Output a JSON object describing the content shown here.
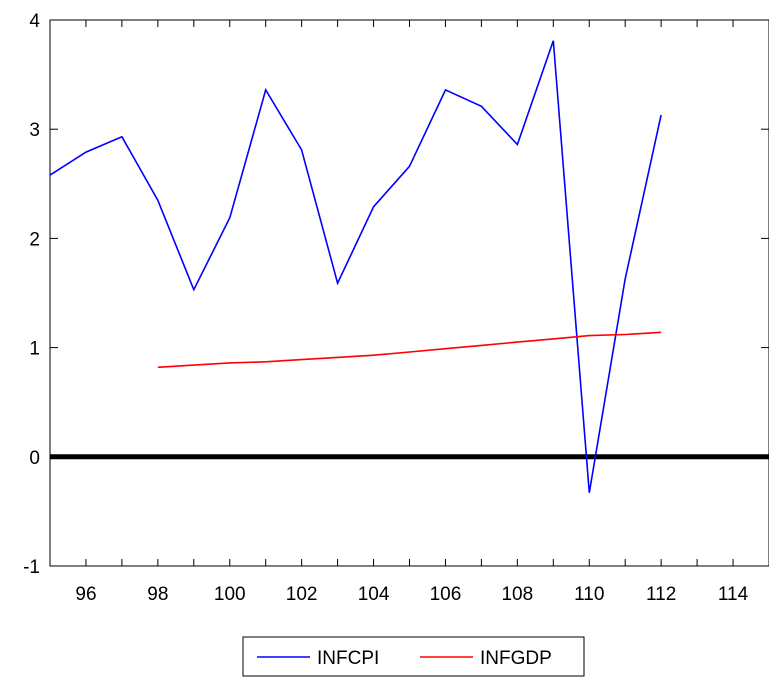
{
  "chart_data": {
    "type": "line",
    "title": "",
    "xlabel": "",
    "ylabel": "",
    "xlim": [
      95,
      115
    ],
    "ylim": [
      -1,
      4
    ],
    "x_ticks": [
      96,
      98,
      100,
      102,
      104,
      106,
      108,
      110,
      112,
      114
    ],
    "y_ticks": [
      -1,
      0,
      1,
      2,
      3,
      4
    ],
    "grid": false,
    "zero_line": true,
    "legend_position": "bottom-center",
    "series": [
      {
        "name": "INFCPI",
        "color": "#0000ff",
        "x": [
          95,
          96,
          97,
          98,
          99,
          100,
          101,
          102,
          103,
          104,
          105,
          106,
          107,
          108,
          109,
          110,
          111,
          112
        ],
        "values": [
          2.58,
          2.79,
          2.93,
          2.35,
          1.53,
          2.19,
          3.36,
          2.81,
          1.59,
          2.29,
          2.66,
          3.36,
          3.21,
          2.86,
          3.81,
          -0.33,
          1.63,
          3.13
        ]
      },
      {
        "name": "INFGDP",
        "color": "#ff0000",
        "x": [
          98,
          99,
          100,
          101,
          102,
          103,
          104,
          105,
          106,
          107,
          108,
          109,
          110,
          111,
          112
        ],
        "values": [
          0.82,
          0.84,
          0.86,
          0.87,
          0.89,
          0.91,
          0.93,
          0.96,
          0.99,
          1.02,
          1.05,
          1.08,
          1.11,
          1.12,
          1.14
        ]
      }
    ]
  }
}
